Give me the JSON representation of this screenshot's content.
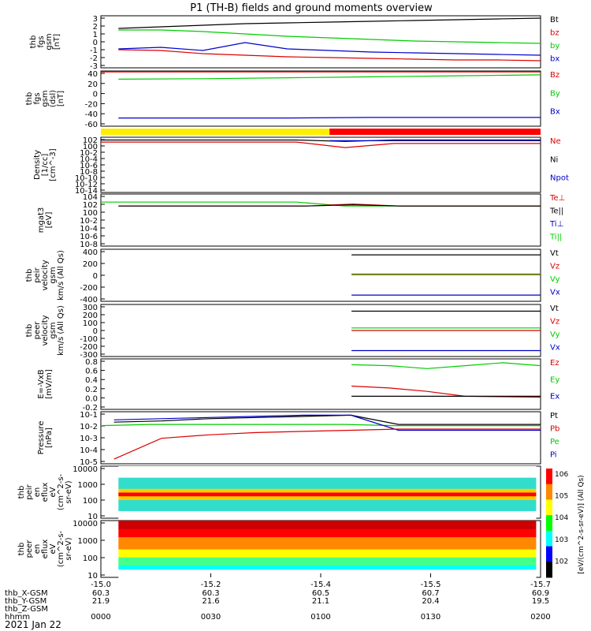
{
  "title": "P1 (TH-B) fields and ground moments overview",
  "date_label": "2021 Jan 22",
  "colorbar_label": "[eV/(cm^2-s-sr-eV)] (All Qs)",
  "colorbar_ticks": [
    "10^6",
    "10^5",
    "10^4",
    "10^3",
    "10^2"
  ],
  "colors": {
    "black": "#000000",
    "red": "#dd0000",
    "green": "#00cc00",
    "blue": "#0000cc",
    "yellow": "#ffee00",
    "barred": "#ff0000"
  },
  "chart_data": [
    {
      "type": "line",
      "id": "fgs",
      "ylabel": [
        "thb",
        "fgs",
        "gsm",
        "[nT]"
      ],
      "ticks": [
        "3",
        "2",
        "1",
        "0",
        "-1",
        "-2",
        "-3"
      ],
      "ylim": [
        -3.2,
        3.4
      ],
      "legend": [
        "Bt",
        "bz",
        "by",
        "bx"
      ],
      "legend_colors": [
        "black",
        "red",
        "green",
        "blue"
      ],
      "series": [
        {
          "name": "Bt",
          "color": "black",
          "start": 0.04,
          "end": 1.0,
          "values": [
            1.8,
            2.0,
            2.2,
            2.4,
            2.5,
            2.6,
            2.7,
            2.8,
            2.9,
            3.0,
            3.1
          ]
        },
        {
          "name": "by",
          "color": "green",
          "start": 0.04,
          "end": 1.0,
          "values": [
            1.6,
            1.6,
            1.4,
            1.1,
            0.8,
            0.6,
            0.4,
            0.2,
            0.1,
            0.0,
            -0.1
          ]
        },
        {
          "name": "bx",
          "color": "blue",
          "start": 0.04,
          "end": 1.0,
          "values": [
            -0.8,
            -0.6,
            -1.0,
            0.0,
            -0.8,
            -1.0,
            -1.2,
            -1.3,
            -1.4,
            -1.5,
            -1.6
          ]
        },
        {
          "name": "bz",
          "color": "red",
          "start": 0.04,
          "end": 1.0,
          "values": [
            -0.9,
            -1.0,
            -1.4,
            -1.6,
            -1.8,
            -1.9,
            -2.0,
            -2.1,
            -2.2,
            -2.2,
            -2.3
          ]
        }
      ]
    },
    {
      "type": "line",
      "id": "fgs_dsl",
      "ylabel": [
        "thb",
        "fgs",
        "gsm",
        "(dsl)",
        "[nT]"
      ],
      "ticks": [
        "40",
        "20",
        "0",
        "-20",
        "-40",
        "-60"
      ],
      "ylim": [
        -72,
        42
      ],
      "legend": [
        "Bz",
        "By",
        "Bx"
      ],
      "legend_colors": [
        "red",
        "green",
        "blue"
      ],
      "series": [
        {
          "name": "Bz",
          "color": "red",
          "start": 0.0,
          "end": 1.0,
          "values": [
            40,
            40,
            40,
            40,
            40,
            40
          ]
        },
        {
          "name": "By",
          "color": "green",
          "start": 0.04,
          "end": 1.0,
          "values": [
            25,
            26,
            28,
            30,
            32,
            34
          ]
        },
        {
          "name": "Bx",
          "color": "blue",
          "start": 0.04,
          "end": 1.0,
          "values": [
            -55,
            -55,
            -55,
            -54,
            -54,
            -54
          ]
        }
      ]
    },
    {
      "type": "bar",
      "id": "mode_bar",
      "segments": [
        {
          "color": "yellow",
          "from": 0.0,
          "to": 0.52
        },
        {
          "color": "barred",
          "from": 0.52,
          "to": 1.0
        }
      ]
    },
    {
      "type": "line",
      "id": "density",
      "log": true,
      "ylabel": [
        "Density",
        "[1/cc]",
        "[cm^-3]"
      ],
      "ticks": [
        "10^2",
        "10^0",
        "10^-2",
        "10^-4",
        "10^-6",
        "10^-8",
        "10^-10",
        "10^-12",
        "10^-14"
      ],
      "ylim": [
        -14,
        2
      ],
      "legend": [
        "Ne",
        "Ni",
        "Npot"
      ],
      "legend_colors": [
        "red",
        "black",
        "blue"
      ],
      "series": [
        {
          "name": "Ne",
          "color": "red",
          "start": 0.0,
          "end": 1.0,
          "values": [
            0.6,
            0.6,
            0.6,
            0.6,
            0.6,
            -1.0,
            0.2,
            0.2,
            0.2,
            0.2
          ]
        },
        {
          "name": "Ni",
          "color": "black",
          "start": 0.0,
          "end": 1.0,
          "values": [
            1.2,
            1.2,
            1.2,
            1.2,
            1.2,
            0.8,
            1.2,
            1.2,
            1.2,
            1.2
          ]
        },
        {
          "name": "Npot",
          "color": "blue",
          "start": 0.52,
          "end": 1.0,
          "values": [
            1.0,
            1.0,
            1.0,
            1.0
          ]
        }
      ]
    },
    {
      "type": "line",
      "id": "temp",
      "log": true,
      "ylabel": [
        "mgat3",
        "[eV]"
      ],
      "ticks": [
        "10^4",
        "10^2",
        "10^0",
        "10^-2",
        "10^-4",
        "10^-6",
        "10^-8"
      ],
      "ylim": [
        -8,
        5
      ],
      "legend": [
        "Te⊥",
        "Te||",
        "Ti⊥",
        "Ti||"
      ],
      "legend_colors": [
        "red",
        "black",
        "blue",
        "green"
      ],
      "series": [
        {
          "name": "Ti||",
          "color": "green",
          "start": 0.0,
          "end": 1.0,
          "values": [
            3.0,
            3.0,
            3.0,
            3.0,
            3.0,
            2.0,
            2.0,
            2.0,
            2.0,
            2.0
          ]
        },
        {
          "name": "Te⊥",
          "color": "red",
          "start": 0.04,
          "end": 1.0,
          "values": [
            2.0,
            2.0,
            2.0,
            2.0,
            2.0,
            2.5,
            2.0,
            2.0,
            2.0,
            2.0
          ]
        },
        {
          "name": "Te||",
          "color": "black",
          "start": 0.04,
          "end": 1.0,
          "values": [
            2.0,
            2.0,
            2.0,
            2.0,
            2.0,
            2.3,
            2.0,
            2.0,
            2.0,
            2.0
          ]
        }
      ]
    },
    {
      "type": "line",
      "id": "peir_vel",
      "ylabel": [
        "thb",
        "peir",
        "velocity",
        "gsm",
        "km/s (All Qs)"
      ],
      "ticks": [
        "400",
        "200",
        "0",
        "-200",
        "-400"
      ],
      "ylim": [
        -420,
        420
      ],
      "legend": [
        "Vt",
        "Vz",
        "Vy",
        "Vx"
      ],
      "legend_colors": [
        "black",
        "red",
        "green",
        "blue"
      ],
      "series": [
        {
          "name": "Vt",
          "color": "black",
          "start": 0.57,
          "end": 1.0,
          "values": [
            330,
            330,
            330
          ]
        },
        {
          "name": "Vz",
          "color": "red",
          "start": 0.57,
          "end": 1.0,
          "values": [
            10,
            10,
            10
          ]
        },
        {
          "name": "Vy",
          "color": "green",
          "start": 0.57,
          "end": 1.0,
          "values": [
            20,
            20,
            20
          ]
        },
        {
          "name": "Vx",
          "color": "blue",
          "start": 0.57,
          "end": 1.0,
          "values": [
            -320,
            -320,
            -320
          ]
        }
      ]
    },
    {
      "type": "line",
      "id": "peer_vel",
      "ylabel": [
        "thb",
        "peer",
        "velocity",
        "gsm",
        "km/s (All Qs)"
      ],
      "ticks": [
        "300",
        "200",
        "100",
        "0",
        "-100",
        "-200",
        "-300"
      ],
      "ylim": [
        -310,
        310
      ],
      "legend": [
        "Vt",
        "Vz",
        "Vy",
        "Vx"
      ],
      "legend_colors": [
        "black",
        "red",
        "green",
        "blue"
      ],
      "series": [
        {
          "name": "Vt",
          "color": "black",
          "start": 0.57,
          "end": 1.0,
          "values": [
            230,
            230,
            230
          ]
        },
        {
          "name": "Vy",
          "color": "green",
          "start": 0.57,
          "end": 1.0,
          "values": [
            30,
            30,
            30
          ]
        },
        {
          "name": "Vz",
          "color": "red",
          "start": 0.57,
          "end": 1.0,
          "values": [
            0,
            0,
            0
          ]
        },
        {
          "name": "Vx",
          "color": "blue",
          "start": 0.57,
          "end": 1.0,
          "values": [
            -240,
            -240,
            -240
          ]
        }
      ]
    },
    {
      "type": "line",
      "id": "efield",
      "ylabel": [
        "E=-VxB",
        "[mV/m]"
      ],
      "ticks": [
        "0.8",
        "0.6",
        "0.4",
        "0.2",
        "0.0",
        "-0.2"
      ],
      "ylim": [
        -0.22,
        0.82
      ],
      "legend": [
        "Ez",
        "Ey",
        "Ex"
      ],
      "legend_colors": [
        "red",
        "green",
        "blue"
      ],
      "series": [
        {
          "name": "Ey",
          "color": "green",
          "start": 0.57,
          "end": 1.0,
          "values": [
            0.7,
            0.68,
            0.62,
            0.68,
            0.74,
            0.68
          ]
        },
        {
          "name": "Ez",
          "color": "red",
          "start": 0.57,
          "end": 1.0,
          "values": [
            0.26,
            0.22,
            0.15,
            0.05,
            0.04,
            0.03
          ]
        },
        {
          "name": "Ex",
          "color": "black",
          "start": 0.57,
          "end": 1.0,
          "values": [
            0.05,
            0.05,
            0.05,
            0.05,
            0.05,
            0.05
          ]
        }
      ]
    },
    {
      "type": "line",
      "id": "pressure",
      "log": true,
      "ylabel": [
        "Pressure",
        "[nPa]"
      ],
      "ticks": [
        "10^-1",
        "10^-2",
        "10^-3",
        "10^-4",
        "10^-5"
      ],
      "ylim": [
        -5.2,
        -0.7
      ],
      "legend": [
        "Pt",
        "Pb",
        "Pe",
        "Pi"
      ],
      "legend_colors": [
        "black",
        "red",
        "green",
        "blue"
      ],
      "series": [
        {
          "name": "Pt",
          "color": "black",
          "start": 0.03,
          "end": 1.0,
          "values": [
            -1.6,
            -1.5,
            -1.3,
            -1.2,
            -1.1,
            -1.0,
            -1.8,
            -1.8,
            -1.8,
            -1.8
          ]
        },
        {
          "name": "Pe",
          "color": "green",
          "start": 0.0,
          "end": 1.0,
          "values": [
            -1.9,
            -1.8,
            -1.8,
            -1.8,
            -1.8,
            -1.8,
            -1.9,
            -1.9,
            -1.9,
            -1.9
          ]
        },
        {
          "name": "Pi",
          "color": "blue",
          "start": 0.03,
          "end": 1.0,
          "values": [
            -1.4,
            -1.3,
            -1.2,
            -1.1,
            -1.0,
            -1.0,
            -2.3,
            -2.3,
            -2.3,
            -2.3
          ]
        },
        {
          "name": "Pb",
          "color": "red",
          "start": 0.03,
          "end": 1.0,
          "values": [
            -4.8,
            -3.0,
            -2.7,
            -2.5,
            -2.4,
            -2.3,
            -2.2,
            -2.2,
            -2.2,
            -2.2
          ]
        }
      ]
    },
    {
      "type": "heatmap",
      "id": "peir_eflux",
      "ylabel": [
        "thb",
        "peir",
        "en",
        "eflux",
        "eV",
        "(cm^2-s-",
        "sr-eV)"
      ],
      "ticks": [
        "10000",
        "1000",
        "100",
        "10"
      ],
      "ylim": [
        5,
        15000
      ]
    },
    {
      "type": "heatmap",
      "id": "peer_eflux",
      "ylabel": [
        "thb",
        "peer",
        "en",
        "eflux",
        "eV",
        "(cm^2-s-",
        "sr-eV)"
      ],
      "ticks": [
        "10000",
        "1000",
        "100",
        "10"
      ],
      "ylim": [
        5,
        15000
      ]
    }
  ],
  "x_axis": {
    "tick_values": [
      "-15.0",
      "-15.2",
      "-15.4",
      "-15.5",
      "-15.7"
    ],
    "rows": [
      {
        "label": "thb_X-GSM",
        "values": [
          "60.3",
          "60.3",
          "60.5",
          "60.7",
          "60.9"
        ]
      },
      {
        "label": "thb_Y-GSM",
        "values": [
          "21.9",
          "21.6",
          "21.1",
          "20.4",
          "19.5"
        ]
      },
      {
        "label": "thb_Z-GSM",
        "values": [
          "",
          "",
          "",
          "",
          ""
        ]
      },
      {
        "label": "hhmm",
        "values": [
          "0000",
          "0030",
          "0100",
          "0130",
          "0200"
        ]
      }
    ]
  }
}
